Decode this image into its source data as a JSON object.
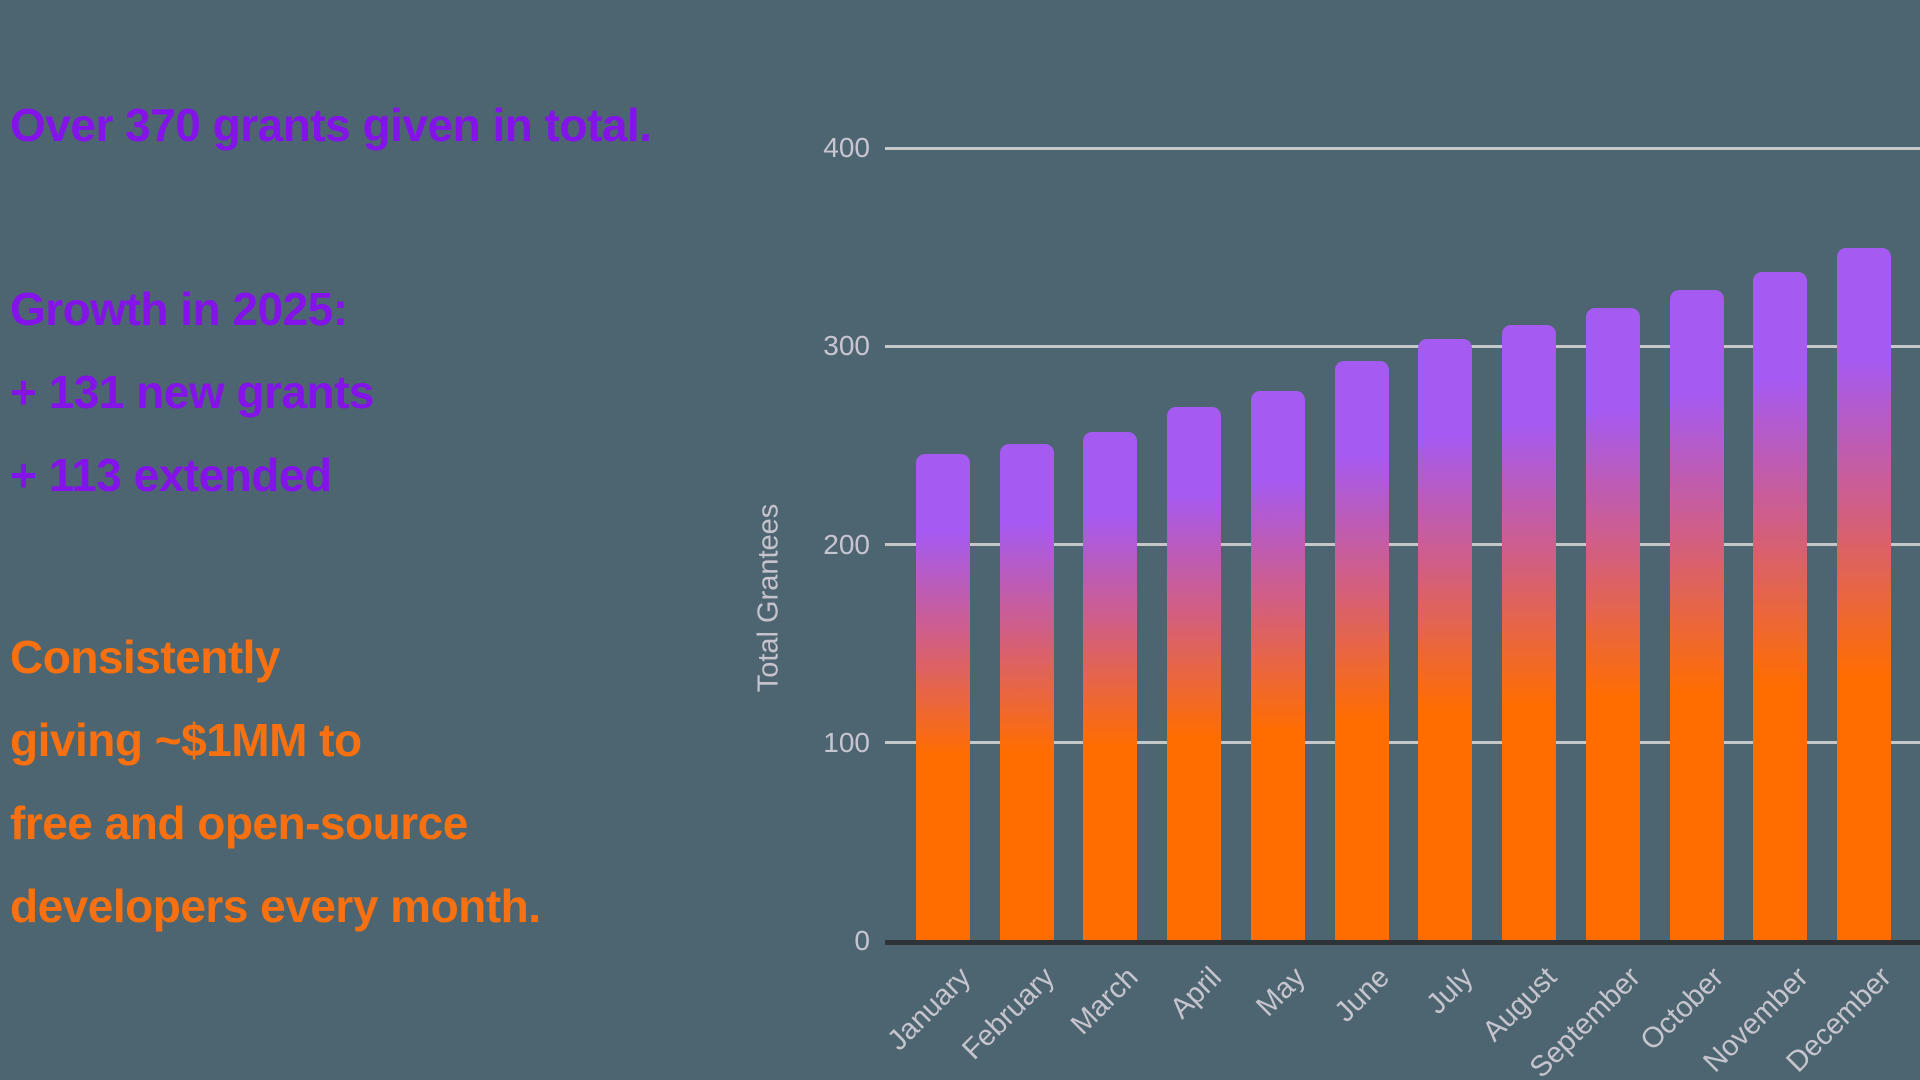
{
  "page": {
    "background_color": "#4D6570"
  },
  "left_panel": {
    "headline": "Over 370 grants given in total.",
    "growth_title": "Growth in 2025:",
    "growth_lines": [
      "+ 131 new grants",
      "+ 113 extended"
    ],
    "mission_lines": [
      "Consistently",
      "giving ~$1MM to",
      "free and open-source",
      "developers every month."
    ],
    "purple_text_color": "#8413EA",
    "orange_text_color": "#F8700F"
  },
  "chart_data": {
    "type": "bar",
    "title": "",
    "xlabel": "",
    "ylabel": "Total Grantees",
    "categories": [
      "January",
      "February",
      "March",
      "April",
      "May",
      "June",
      "July",
      "August",
      "September",
      "October",
      "November",
      "December"
    ],
    "values": [
      245,
      250,
      256,
      269,
      277,
      292,
      303,
      310,
      319,
      328,
      337,
      349
    ],
    "yticks": [
      0,
      100,
      200,
      300,
      400
    ],
    "ylim": [
      0,
      400
    ],
    "grid": true,
    "legend": false,
    "colors": {
      "bar_top": "#A55AF2",
      "bar_mid": "#D15E83",
      "bar_bottom": "#FF6D00",
      "gridline": "#C5C7C9",
      "axis_line": "#2E3338",
      "tick_text": "#C7C5D2"
    }
  }
}
